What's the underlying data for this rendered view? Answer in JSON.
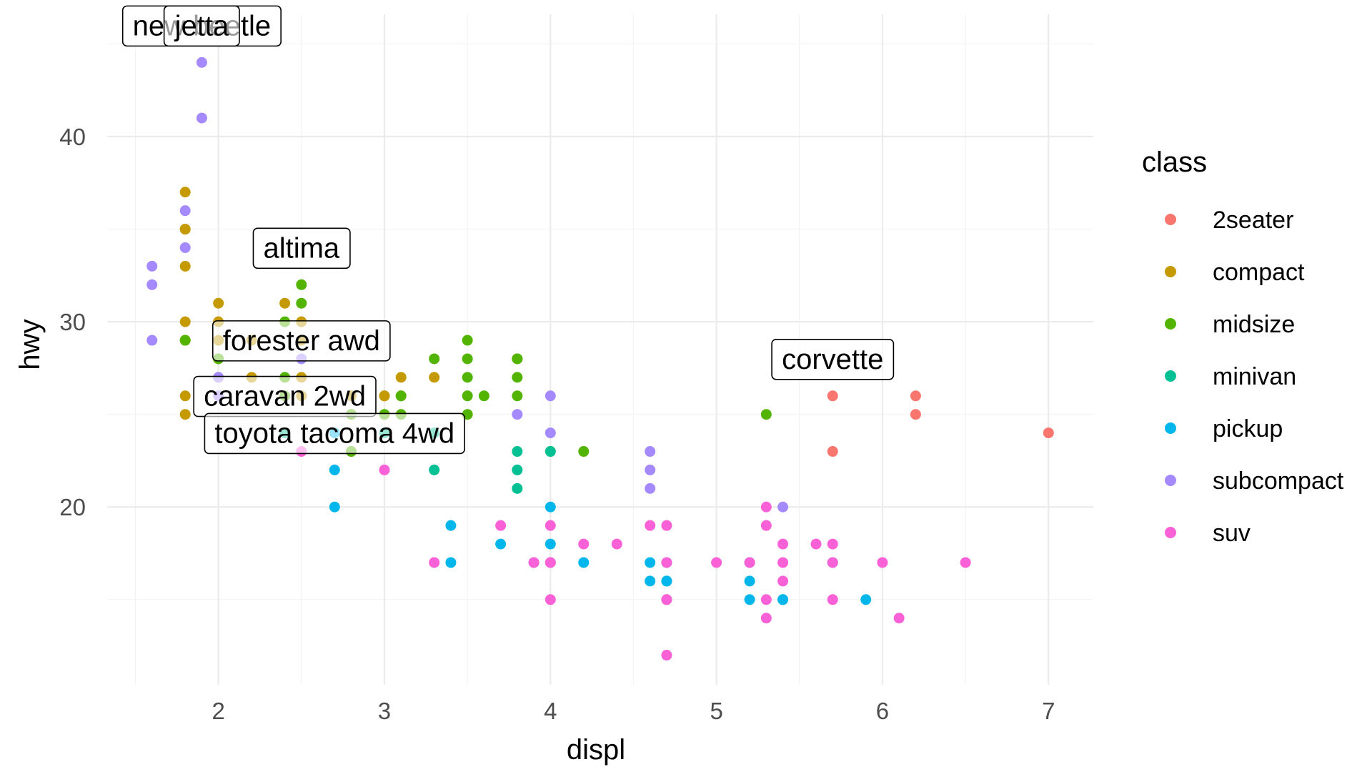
{
  "chart_data": {
    "type": "scatter",
    "xlabel": "displ",
    "ylabel": "hwy",
    "xlim": [
      1.33,
      7.27
    ],
    "ylim": [
      10.4,
      46.6
    ],
    "x_ticks": [
      2,
      3,
      4,
      5,
      6,
      7
    ],
    "y_ticks": [
      20,
      30,
      40
    ],
    "grid": true,
    "legend": {
      "title": "class",
      "position": "right",
      "entries": [
        {
          "name": "2seater",
          "color": "#F8766D"
        },
        {
          "name": "compact",
          "color": "#C49A00"
        },
        {
          "name": "midsize",
          "color": "#53B400"
        },
        {
          "name": "minivan",
          "color": "#00C094"
        },
        {
          "name": "pickup",
          "color": "#00B6EB"
        },
        {
          "name": "subcompact",
          "color": "#A58AFF"
        },
        {
          "name": "suv",
          "color": "#FB61D7"
        }
      ]
    },
    "series": [
      {
        "name": "2seater",
        "color": "#F8766D",
        "points": [
          [
            5.7,
            26
          ],
          [
            5.7,
            23
          ],
          [
            6.2,
            26
          ],
          [
            6.2,
            25
          ],
          [
            7.0,
            24
          ]
        ]
      },
      {
        "name": "compact",
        "color": "#C49A00",
        "points": [
          [
            1.8,
            29
          ],
          [
            1.8,
            30
          ],
          [
            2.0,
            31
          ],
          [
            2.0,
            30
          ],
          [
            2.8,
            26
          ],
          [
            2.8,
            23
          ],
          [
            3.1,
            27
          ],
          [
            1.8,
            26
          ],
          [
            1.8,
            25
          ],
          [
            2.0,
            28
          ],
          [
            2.0,
            27
          ],
          [
            2.8,
            25
          ],
          [
            3.0,
            26
          ],
          [
            3.1,
            26
          ],
          [
            2.2,
            29
          ],
          [
            2.2,
            27
          ],
          [
            2.4,
            31
          ],
          [
            2.4,
            26
          ],
          [
            3.0,
            26
          ],
          [
            3.3,
            27
          ],
          [
            2.5,
            26
          ],
          [
            2.5,
            27
          ],
          [
            2.5,
            30
          ],
          [
            1.8,
            33
          ],
          [
            1.8,
            35
          ],
          [
            1.8,
            37
          ],
          [
            1.8,
            35
          ],
          [
            1.8,
            29
          ],
          [
            2.0,
            29
          ],
          [
            2.5,
            29
          ]
        ]
      },
      {
        "name": "midsize",
        "color": "#53B400",
        "points": [
          [
            1.8,
            29
          ],
          [
            2.0,
            28
          ],
          [
            2.8,
            25
          ],
          [
            3.1,
            25
          ],
          [
            4.2,
            23
          ],
          [
            2.4,
            27
          ],
          [
            2.4,
            30
          ],
          [
            3.1,
            26
          ],
          [
            3.5,
            29
          ],
          [
            3.6,
            26
          ],
          [
            3.5,
            26
          ],
          [
            3.8,
            28
          ],
          [
            3.8,
            27
          ],
          [
            3.8,
            26
          ],
          [
            5.3,
            25
          ],
          [
            2.4,
            26
          ],
          [
            3.3,
            28
          ],
          [
            3.5,
            28
          ],
          [
            3.5,
            27
          ],
          [
            2.5,
            32
          ],
          [
            2.5,
            31
          ],
          [
            3.5,
            25
          ],
          [
            2.8,
            23
          ],
          [
            3.0,
            25
          ],
          [
            3.8,
            28
          ],
          [
            4.0,
            23
          ]
        ]
      },
      {
        "name": "minivan",
        "color": "#00C094",
        "points": [
          [
            2.4,
            24
          ],
          [
            3.0,
            24
          ],
          [
            3.3,
            22
          ],
          [
            3.3,
            24
          ],
          [
            3.8,
            22
          ],
          [
            3.8,
            21
          ],
          [
            3.8,
            23
          ],
          [
            4.0,
            23
          ]
        ]
      },
      {
        "name": "pickup",
        "color": "#00B6EB",
        "points": [
          [
            3.7,
            18
          ],
          [
            4.7,
            17
          ],
          [
            4.7,
            16
          ],
          [
            5.2,
            17
          ],
          [
            5.2,
            16
          ],
          [
            5.7,
            17
          ],
          [
            5.9,
            15
          ],
          [
            4.7,
            16
          ],
          [
            5.2,
            15
          ],
          [
            3.9,
            17
          ],
          [
            4.7,
            16
          ],
          [
            5.4,
            15
          ],
          [
            2.7,
            20
          ],
          [
            2.7,
            22
          ],
          [
            3.4,
            17
          ],
          [
            3.4,
            19
          ],
          [
            4.0,
            18
          ],
          [
            4.0,
            20
          ],
          [
            4.6,
            17
          ],
          [
            4.6,
            16
          ],
          [
            4.2,
            17
          ],
          [
            5.4,
            15
          ],
          [
            2.7,
            24
          ]
        ]
      },
      {
        "name": "subcompact",
        "color": "#A58AFF",
        "points": [
          [
            1.6,
            33
          ],
          [
            1.6,
            32
          ],
          [
            1.6,
            29
          ],
          [
            1.8,
            34
          ],
          [
            1.8,
            36
          ],
          [
            1.9,
            44
          ],
          [
            1.9,
            41
          ],
          [
            2.0,
            26
          ],
          [
            2.0,
            27
          ],
          [
            2.5,
            28
          ],
          [
            3.8,
            25
          ],
          [
            4.0,
            26
          ],
          [
            4.0,
            24
          ],
          [
            4.6,
            21
          ],
          [
            4.6,
            22
          ],
          [
            4.6,
            23
          ],
          [
            5.4,
            20
          ]
        ]
      },
      {
        "name": "suv",
        "color": "#FB61D7",
        "points": [
          [
            5.3,
            20
          ],
          [
            5.3,
            15
          ],
          [
            5.7,
            17
          ],
          [
            6.5,
            17
          ],
          [
            3.7,
            19
          ],
          [
            4.7,
            19
          ],
          [
            4.7,
            17
          ],
          [
            4.7,
            15
          ],
          [
            4.7,
            12
          ],
          [
            5.2,
            17
          ],
          [
            5.7,
            15
          ],
          [
            4.0,
            17
          ],
          [
            4.0,
            19
          ],
          [
            4.0,
            15
          ],
          [
            4.6,
            19
          ],
          [
            5.0,
            17
          ],
          [
            5.4,
            17
          ],
          [
            5.4,
            18
          ],
          [
            4.2,
            18
          ],
          [
            4.4,
            18
          ],
          [
            5.4,
            16
          ],
          [
            5.3,
            19
          ],
          [
            5.3,
            14
          ],
          [
            5.6,
            18
          ],
          [
            6.1,
            14
          ],
          [
            4.0,
            17
          ],
          [
            5.7,
            18
          ],
          [
            6.0,
            17
          ],
          [
            3.3,
            17
          ],
          [
            3.0,
            22
          ],
          [
            2.5,
            23
          ],
          [
            3.9,
            17
          ],
          [
            4.7,
            15
          ]
        ]
      }
    ],
    "annotations": [
      {
        "label": "new beetle",
        "x": 1.9,
        "y": 44
      },
      {
        "label": "jetta",
        "x": 1.9,
        "y": 44
      },
      {
        "label": "altima",
        "x": 2.5,
        "y": 32
      },
      {
        "label": "forester awd",
        "x": 2.5,
        "y": 27
      },
      {
        "label": "caravan 2wd",
        "x": 2.4,
        "y": 24
      },
      {
        "label": "toyota tacoma 4wd",
        "x": 2.7,
        "y": 22
      },
      {
        "label": "corvette",
        "x": 5.7,
        "y": 26
      }
    ]
  }
}
